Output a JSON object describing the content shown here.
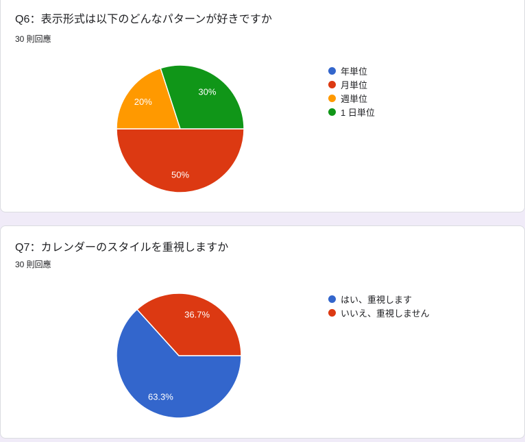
{
  "page": {
    "background_color": "#F0EBF8",
    "card_background": "#FFFFFF",
    "card_border_color": "#DADCE0"
  },
  "chart_data": [
    {
      "type": "pie",
      "title": "Q6：表示形式は以下のどんなパターンが好きですか",
      "subtitle": "30 則回應",
      "legend_position": "right",
      "start_angle_deg": 0,
      "direction": "clockwise",
      "slices": [
        {
          "label": "年単位",
          "value_pct": 0,
          "color": "#3366CC",
          "pct_label": ""
        },
        {
          "label": "月単位",
          "value_pct": 50,
          "color": "#DC3912",
          "pct_label": "50%"
        },
        {
          "label": "週単位",
          "value_pct": 20,
          "color": "#FF9900",
          "pct_label": "20%"
        },
        {
          "label": "1 日単位",
          "value_pct": 30,
          "color": "#109618",
          "pct_label": "30%"
        }
      ]
    },
    {
      "type": "pie",
      "title": "Q7：カレンダーのスタイルを重視しますか",
      "subtitle": "30 則回應",
      "legend_position": "right",
      "start_angle_deg": 0,
      "direction": "clockwise",
      "slices": [
        {
          "label": "はい、重視します",
          "value_pct": 63.3,
          "color": "#3366CC",
          "pct_label": "63.3%"
        },
        {
          "label": "いいえ、重視しません",
          "value_pct": 36.7,
          "color": "#DC3912",
          "pct_label": "36.7%"
        }
      ]
    }
  ]
}
